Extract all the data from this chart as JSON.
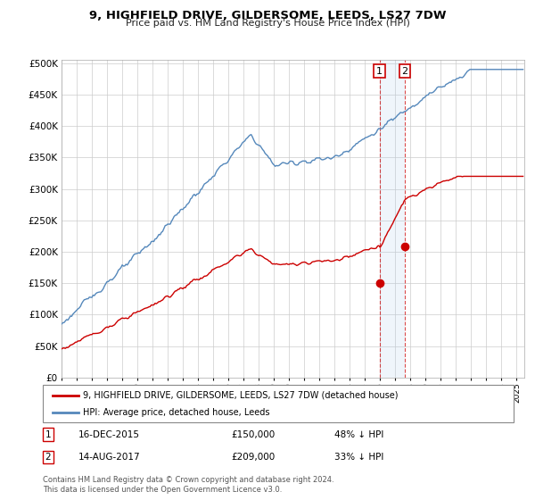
{
  "title": "9, HIGHFIELD DRIVE, GILDERSOME, LEEDS, LS27 7DW",
  "subtitle": "Price paid vs. HM Land Registry's House Price Index (HPI)",
  "hpi_color": "#5588bb",
  "price_color": "#cc0000",
  "transaction1_date": 2015.96,
  "transaction1_price": 150000,
  "transaction2_date": 2017.62,
  "transaction2_price": 209000,
  "legend_line1": "9, HIGHFIELD DRIVE, GILDERSOME, LEEDS, LS27 7DW (detached house)",
  "legend_line2": "HPI: Average price, detached house, Leeds",
  "footnote1_text": "16-DEC-2015",
  "footnote1_price": "£150,000",
  "footnote1_hpi": "48% ↓ HPI",
  "footnote2_text": "14-AUG-2017",
  "footnote2_price": "£209,000",
  "footnote2_hpi": "33% ↓ HPI",
  "copyright": "Contains HM Land Registry data © Crown copyright and database right 2024.\nThis data is licensed under the Open Government Licence v3.0.",
  "xmin": 1995.0,
  "xmax": 2025.5,
  "ymin": 0,
  "ymax": 500000
}
